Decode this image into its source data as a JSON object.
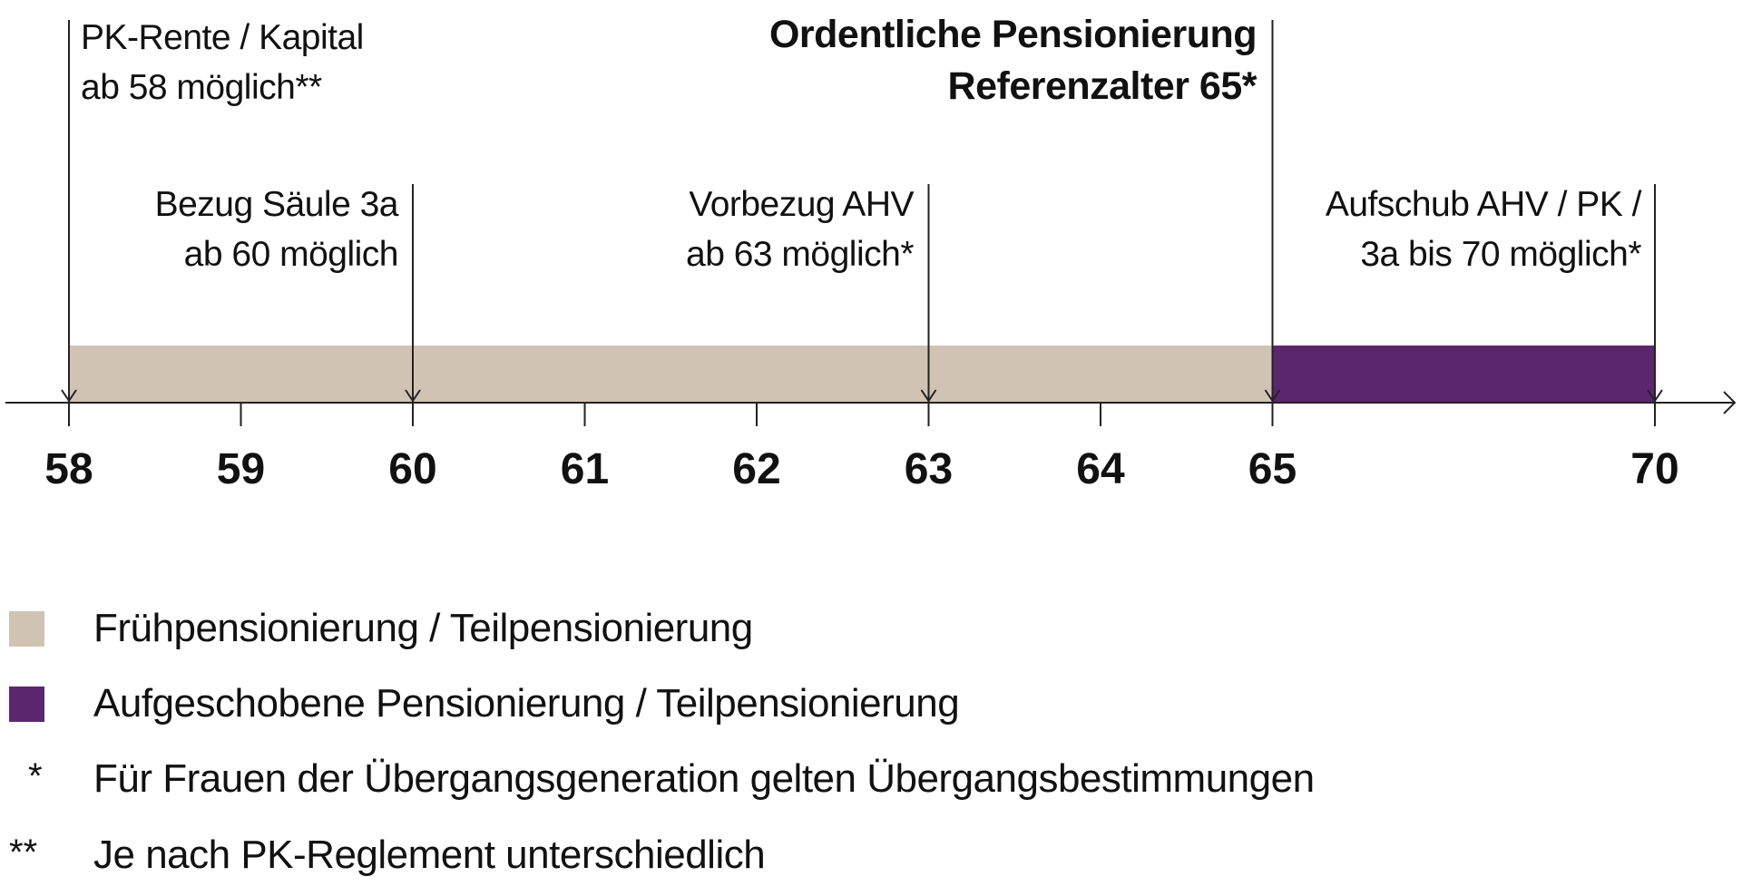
{
  "chart_data": {
    "type": "bar",
    "orientation": "horizontal-timeline",
    "title": "Ordentliche Pensionierung Referenzalter 65*",
    "ticks": [
      "58",
      "59",
      "60",
      "61",
      "62",
      "63",
      "64",
      "65",
      "70"
    ],
    "series": [
      {
        "name": "Frühpensionierung / Teilpensionierung",
        "start": 58,
        "end": 65,
        "color": "#d1c3b3"
      },
      {
        "name": "Aufgeschobene Pensionierung / Teilpensionierung",
        "start": 65,
        "end": 70,
        "color": "#5c266e"
      }
    ],
    "markers": [
      {
        "age": 58,
        "lines": [
          "PK-Rente / Kapital",
          "ab 58 möglich**"
        ]
      },
      {
        "age": 60,
        "lines": [
          "Bezug Säule 3a",
          "ab 60 möglich"
        ]
      },
      {
        "age": 63,
        "lines": [
          "Vorbezug AHV",
          "ab 63 möglich*"
        ]
      },
      {
        "age": 65,
        "lines": [
          "Ordentliche Pensionierung",
          "Referenzalter 65*"
        ]
      },
      {
        "age": 70,
        "lines": [
          "Aufschub AHV / PK /",
          "3a bis 70 möglich*"
        ]
      }
    ]
  },
  "title": {
    "line1": "Ordentliche Pensionierung",
    "line2": "Referenzalter 65*"
  },
  "legend": [
    {
      "label": "Frühpensionierung / Teilpensionierung",
      "color": "#d1c3b3"
    },
    {
      "label": "Aufgeschobene Pensionierung / Teilpensionierung",
      "color": "#5c266e"
    }
  ],
  "footnotes": [
    {
      "mark": "*",
      "text": "Für Frauen der Übergangsgeneration gelten Übergangsbestimmungen"
    },
    {
      "mark": "**",
      "text": "Je nach PK-Reglement unterschiedlich"
    }
  ]
}
